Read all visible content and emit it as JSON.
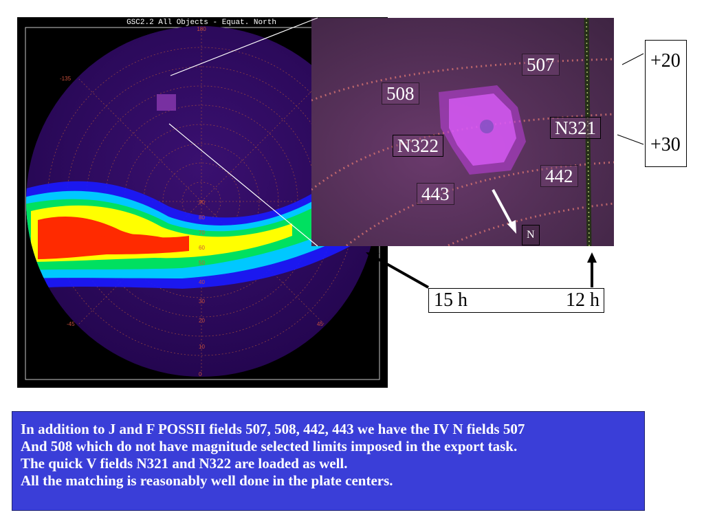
{
  "map": {
    "title": "GSC2.2  All Objects - Equat. North",
    "top_ra_label": "180",
    "left_ra_label": "-135",
    "lower_left_ra_label": "-45",
    "lower_right_ra_label": "45",
    "dec_labels": [
      "90",
      "80",
      "70",
      "60",
      "50",
      "40",
      "30",
      "20",
      "10",
      "0"
    ]
  },
  "zoom": {
    "fields": [
      {
        "id": "507",
        "boxed": false
      },
      {
        "id": "508",
        "boxed": false
      },
      {
        "id": "N321",
        "boxed": true
      },
      {
        "id": "N322",
        "boxed": true
      },
      {
        "id": "442",
        "boxed": false
      },
      {
        "id": "443",
        "boxed": false
      }
    ],
    "north_label": "N"
  },
  "declination": {
    "upper": "+20",
    "lower": "+30"
  },
  "right_ascension": {
    "left": "15 h",
    "right": "12 h"
  },
  "caption": {
    "lines": [
      "In addition to J and F POSSII fields 507, 508, 442, 443 we have the IV N fields 507",
      "And 508 which do not have magnitude selected limits imposed in the export task.",
      "The quick V fields N321 and N322 are loaded as well.",
      "All the matching is reasonably well done in the plate centers."
    ]
  },
  "colors": {
    "caption_bg": "#3a3ed8",
    "sky_bg": "#2a0a5a",
    "density_high": "#ff2a00",
    "density_mid": "#00d2ff"
  }
}
